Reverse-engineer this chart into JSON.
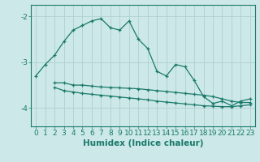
{
  "xlabel": "Humidex (Indice chaleur)",
  "ylabel": "",
  "bg_color": "#cce8e8",
  "grid_color": "#b0d0d0",
  "line_color": "#1a7a6a",
  "xlim": [
    -0.5,
    23.5
  ],
  "ylim": [
    -4.4,
    -1.75
  ],
  "yticks": [
    -4,
    -3,
    -2
  ],
  "xticks": [
    0,
    1,
    2,
    3,
    4,
    5,
    6,
    7,
    8,
    9,
    10,
    11,
    12,
    13,
    14,
    15,
    16,
    17,
    18,
    19,
    20,
    21,
    22,
    23
  ],
  "series1_x": [
    0,
    1,
    2,
    3,
    4,
    5,
    6,
    7,
    8,
    9,
    10,
    11,
    12,
    13,
    14,
    15,
    16,
    17,
    18,
    19,
    20,
    21,
    22,
    23
  ],
  "series1_y": [
    -3.3,
    -3.05,
    -2.85,
    -2.55,
    -2.3,
    -2.2,
    -2.1,
    -2.05,
    -2.25,
    -2.3,
    -2.1,
    -2.5,
    -2.7,
    -3.2,
    -3.3,
    -3.05,
    -3.1,
    -3.4,
    -3.75,
    -3.9,
    -3.85,
    -3.95,
    -3.85,
    -3.8
  ],
  "series2_x": [
    2,
    3,
    4,
    5,
    6,
    7,
    8,
    9,
    10,
    11,
    12,
    13,
    14,
    15,
    16,
    17,
    18,
    19,
    20,
    21,
    22,
    23
  ],
  "series2_y": [
    -3.45,
    -3.45,
    -3.5,
    -3.5,
    -3.52,
    -3.54,
    -3.55,
    -3.56,
    -3.57,
    -3.58,
    -3.6,
    -3.62,
    -3.64,
    -3.66,
    -3.68,
    -3.7,
    -3.72,
    -3.75,
    -3.8,
    -3.85,
    -3.88,
    -3.88
  ],
  "series3_x": [
    2,
    3,
    4,
    5,
    6,
    7,
    8,
    9,
    10,
    11,
    12,
    13,
    14,
    15,
    16,
    17,
    18,
    19,
    20,
    21,
    22,
    23
  ],
  "series3_y": [
    -3.55,
    -3.62,
    -3.65,
    -3.68,
    -3.7,
    -3.72,
    -3.74,
    -3.76,
    -3.78,
    -3.8,
    -3.82,
    -3.85,
    -3.87,
    -3.89,
    -3.91,
    -3.93,
    -3.95,
    -3.96,
    -3.97,
    -3.97,
    -3.95,
    -3.93
  ],
  "fontsize_tick": 6.5,
  "fontsize_label": 7.5,
  "marker": "+"
}
